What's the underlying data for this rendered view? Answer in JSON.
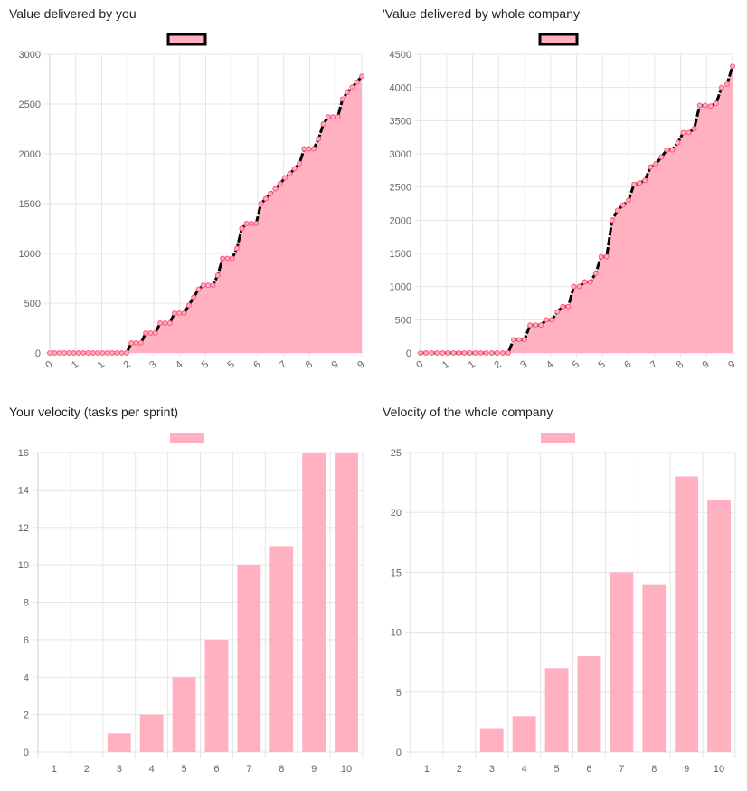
{
  "colors": {
    "fill": "#ffb1c1",
    "border": "#ff6384",
    "line": "#000000",
    "grid": "#e5e5e5",
    "tick": "#666666"
  },
  "chart_data": [
    {
      "type": "area",
      "title": "Value delivered by you",
      "legend": "top",
      "grid": true,
      "ylim": [
        0,
        3000
      ],
      "yticks": [
        0,
        500,
        1000,
        1500,
        2000,
        2500,
        3000
      ],
      "xtick_labels": [
        "0",
        "1",
        "1",
        "2",
        "3",
        "4",
        "5",
        "5",
        "6",
        "7",
        "8",
        "9",
        "9"
      ],
      "values": [
        0,
        0,
        0,
        0,
        0,
        0,
        0,
        0,
        0,
        0,
        0,
        0,
        0,
        0,
        0,
        0,
        0,
        100,
        100,
        100,
        200,
        200,
        200,
        300,
        300,
        300,
        400,
        400,
        400,
        480,
        560,
        640,
        680,
        680,
        680,
        780,
        950,
        950,
        950,
        1050,
        1250,
        1300,
        1300,
        1300,
        1500,
        1550,
        1600,
        1650,
        1700,
        1760,
        1800,
        1850,
        1900,
        2050,
        2050,
        2050,
        2150,
        2300,
        2370,
        2370,
        2370,
        2550,
        2620,
        2670,
        2720,
        2780
      ]
    },
    {
      "type": "area",
      "title": "'Value delivered by whole company",
      "legend": "top",
      "grid": true,
      "ylim": [
        0,
        4500
      ],
      "yticks": [
        0,
        500,
        1000,
        1500,
        2000,
        2500,
        3000,
        3500,
        4000,
        4500
      ],
      "xtick_labels": [
        "0",
        "1",
        "1",
        "2",
        "3",
        "4",
        "5",
        "5",
        "6",
        "7",
        "8",
        "9",
        "9"
      ],
      "values": [
        0,
        0,
        0,
        0,
        0,
        0,
        0,
        0,
        0,
        0,
        0,
        0,
        0,
        0,
        0,
        0,
        0,
        200,
        200,
        200,
        420,
        420,
        420,
        500,
        500,
        620,
        700,
        700,
        1000,
        1000,
        1070,
        1070,
        1200,
        1450,
        1450,
        2000,
        2150,
        2230,
        2300,
        2540,
        2560,
        2600,
        2800,
        2850,
        2950,
        3060,
        3060,
        3170,
        3320,
        3320,
        3380,
        3730,
        3730,
        3720,
        3760,
        4000,
        4050,
        4320
      ]
    },
    {
      "type": "bar",
      "title": "Your velocity (tasks per sprint)",
      "legend": "top",
      "grid": true,
      "ylim": [
        0,
        16
      ],
      "yticks": [
        0,
        2,
        4,
        6,
        8,
        10,
        12,
        14,
        16
      ],
      "categories": [
        "1",
        "2",
        "3",
        "4",
        "5",
        "6",
        "7",
        "8",
        "9",
        "10"
      ],
      "values": [
        0,
        0,
        1,
        2,
        4,
        6,
        10,
        11,
        16,
        16
      ]
    },
    {
      "type": "bar",
      "title": "Velocity of the whole company",
      "legend": "top",
      "grid": true,
      "ylim": [
        0,
        25
      ],
      "yticks": [
        0,
        5,
        10,
        15,
        20,
        25
      ],
      "categories": [
        "1",
        "2",
        "3",
        "4",
        "5",
        "6",
        "7",
        "8",
        "9",
        "10"
      ],
      "values": [
        0,
        0,
        2,
        3,
        7,
        8,
        15,
        14,
        23,
        21
      ]
    }
  ]
}
